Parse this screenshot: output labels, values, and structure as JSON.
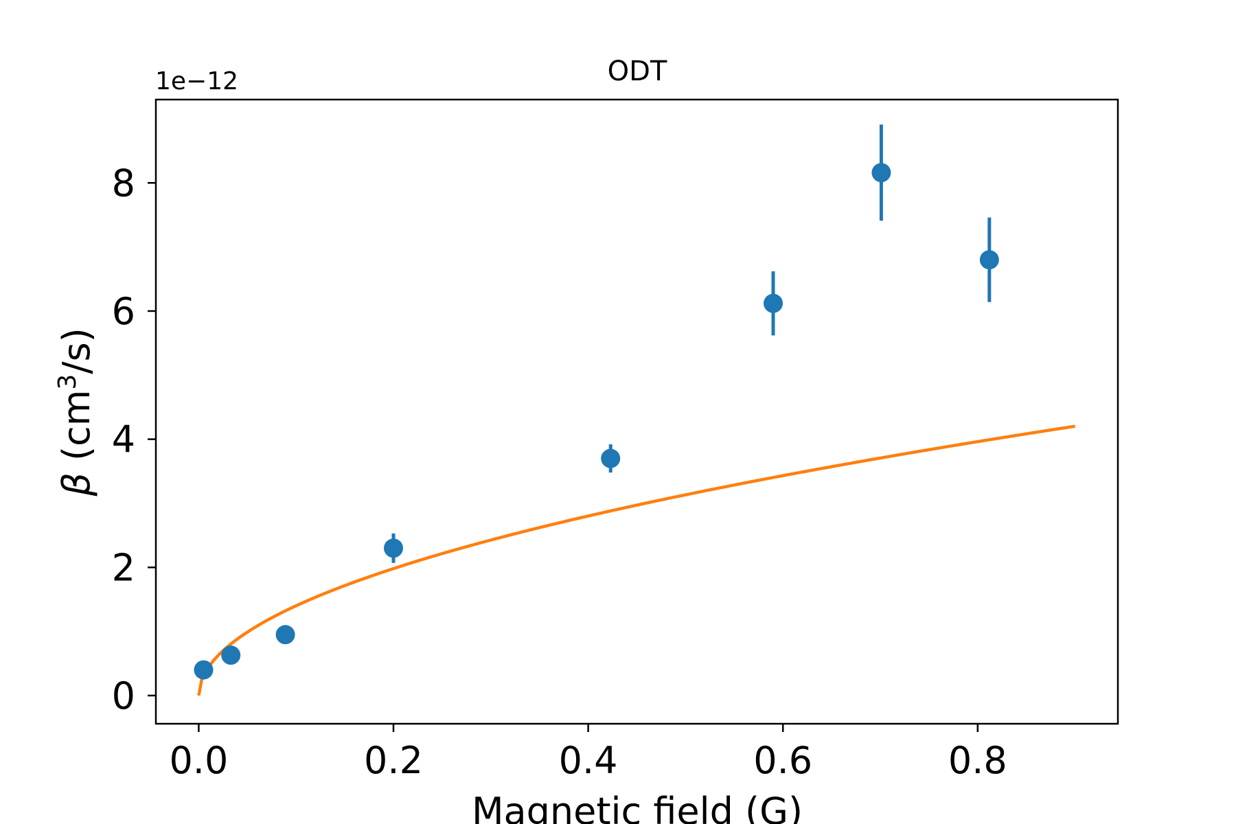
{
  "chart_data": {
    "type": "scatter",
    "title": "ODT",
    "xlabel": "Magnetic field (G)",
    "ylabel_symbol": "β",
    "ylabel_unit_prefix": "(cm",
    "ylabel_unit_exp": "3",
    "ylabel_unit_suffix": "/s)",
    "y_offset_label": "1e−12",
    "xlim": [
      -0.044,
      0.944
    ],
    "ylim": [
      -0.44,
      9.3
    ],
    "y_scale_factor": 1e-12,
    "xticks": [
      0.0,
      0.2,
      0.4,
      0.6,
      0.8
    ],
    "xtick_labels": [
      "0.0",
      "0.2",
      "0.4",
      "0.6",
      "0.8"
    ],
    "yticks": [
      0,
      2,
      4,
      6,
      8
    ],
    "ytick_labels": [
      "0",
      "2",
      "4",
      "6",
      "8"
    ],
    "grid": false,
    "colors": {
      "points": "#1f77b4",
      "fit": "#ff7f0e"
    },
    "series": [
      {
        "kind": "errorbar",
        "x": [
          0.005,
          0.033,
          0.089,
          0.2,
          0.423,
          0.59,
          0.701,
          0.812
        ],
        "y": [
          0.4,
          0.63,
          0.95,
          2.3,
          3.7,
          6.12,
          8.16,
          6.8
        ],
        "yerr": [
          0.0,
          0.0,
          0.0,
          0.23,
          0.22,
          0.5,
          0.75,
          0.66
        ]
      },
      {
        "kind": "line",
        "fit": {
          "coefficient": 4.43,
          "exponent": 0.5,
          "x_range": [
            0.0,
            0.9
          ]
        }
      }
    ]
  }
}
